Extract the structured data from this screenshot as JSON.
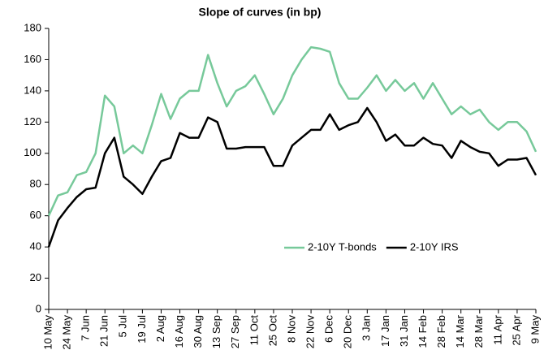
{
  "chart_data": {
    "type": "line",
    "title": "Slope of curves (in bp)",
    "categories": [
      "10 May",
      null,
      "24 May",
      null,
      "7 Jun",
      null,
      "21 Jun",
      null,
      "5 Jul",
      null,
      "19 Jul",
      null,
      "2 Aug",
      null,
      "16 Aug",
      null,
      "30 Aug",
      null,
      "13 Sep",
      null,
      "27 Sep",
      null,
      "11 Oct",
      null,
      "25 Oct",
      null,
      "8 Nov",
      null,
      "22 Nov",
      null,
      "6 Dec",
      null,
      "20 Dec",
      null,
      "3 Jan",
      null,
      "17 Jan",
      null,
      "31 Jan",
      null,
      "14 Feb",
      null,
      "28 Feb",
      null,
      "14 Mar",
      null,
      "28 Mar",
      null,
      "11 Apr",
      null,
      "25 Apr",
      null,
      "9 May"
    ],
    "series": [
      {
        "name": "2-10Y T-bonds",
        "color": "#77c99a",
        "values": [
          60,
          73,
          75,
          86,
          88,
          100,
          137,
          130,
          100,
          105,
          100,
          118,
          138,
          122,
          135,
          140,
          140,
          163,
          145,
          130,
          140,
          143,
          150,
          138,
          125,
          135,
          150,
          160,
          168,
          167,
          165,
          145,
          135,
          135,
          142,
          150,
          140,
          147,
          140,
          145,
          135,
          145,
          135,
          125,
          130,
          125,
          128,
          120,
          115,
          120,
          120,
          114,
          101
        ]
      },
      {
        "name": "2-10Y IRS",
        "color": "#000000",
        "values": [
          40,
          57,
          65,
          72,
          77,
          78,
          100,
          110,
          85,
          80,
          74,
          85,
          95,
          97,
          113,
          110,
          110,
          123,
          120,
          103,
          103,
          104,
          104,
          104,
          92,
          92,
          105,
          110,
          115,
          115,
          125,
          115,
          118,
          120,
          129,
          120,
          108,
          112,
          105,
          105,
          110,
          106,
          105,
          97,
          108,
          104,
          101,
          100,
          92,
          96,
          96,
          97,
          86
        ]
      }
    ],
    "ylim": [
      0,
      180
    ],
    "yticks": [
      0,
      20,
      40,
      60,
      80,
      100,
      120,
      140,
      160,
      180
    ],
    "grid": false,
    "legend": "lower right"
  }
}
